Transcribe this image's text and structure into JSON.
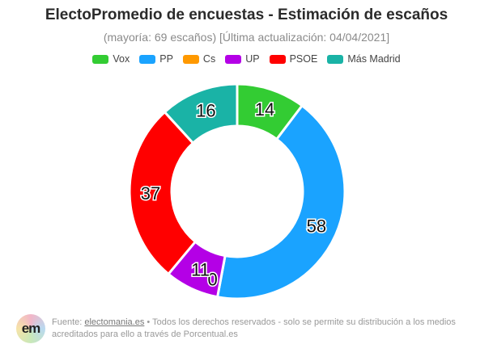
{
  "chart_data": {
    "type": "pie",
    "subtype": "donut",
    "title": "ElectoPromedio de encuestas - Estimación de escaños",
    "subtitle": "(mayoría: 69 escaños) [Última actualización: 04/04/2021]",
    "categories": [
      "Vox",
      "PP",
      "Cs",
      "UP",
      "PSOE",
      "Más Madrid"
    ],
    "values": [
      14,
      58,
      0,
      11,
      37,
      16
    ],
    "colors": [
      "#33cc33",
      "#1aa3ff",
      "#ff9900",
      "#b400e6",
      "#ff0000",
      "#1ab3a6"
    ],
    "legend_position": "top"
  },
  "footer": {
    "logo_text": "em",
    "prefix": "Fuente: ",
    "link": "electomania.es",
    "text": " • Todos los derechos reservados - solo se permite su distribución a los medios acreditados para ello a través de Porcentual.es"
  }
}
